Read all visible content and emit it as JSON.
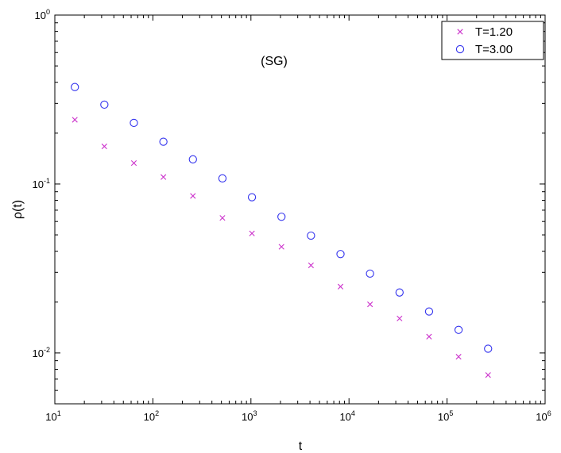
{
  "chart_data": {
    "type": "scatter",
    "xlabel": "t",
    "ylabel": "ρ(t)",
    "annotation": "(SG)",
    "xscale": "log",
    "yscale": "log",
    "xlim": [
      10,
      1000000
    ],
    "ylim": [
      0.005,
      1
    ],
    "xticks": [
      {
        "base": "10",
        "exp": "1",
        "value": 10
      },
      {
        "base": "10",
        "exp": "2",
        "value": 100
      },
      {
        "base": "10",
        "exp": "3",
        "value": 1000
      },
      {
        "base": "10",
        "exp": "4",
        "value": 10000
      },
      {
        "base": "10",
        "exp": "5",
        "value": 100000
      },
      {
        "base": "10",
        "exp": "6",
        "value": 1000000
      }
    ],
    "yticks": [
      {
        "base": "10",
        "exp": "-2",
        "value": 0.01
      },
      {
        "base": "10",
        "exp": "-1",
        "value": 0.1
      },
      {
        "base": "10",
        "exp": "0",
        "value": 1
      }
    ],
    "legend_position": "top-right",
    "series": [
      {
        "name": "T=1.20",
        "marker": "x",
        "color": "#cc33cc",
        "x": [
          16,
          32,
          64,
          128,
          256,
          512,
          1024,
          2048,
          4096,
          8192,
          16384,
          32768,
          65536,
          131072,
          262144
        ],
        "y": [
          0.24,
          0.167,
          0.133,
          0.11,
          0.085,
          0.063,
          0.051,
          0.0425,
          0.033,
          0.0247,
          0.0194,
          0.016,
          0.0125,
          0.0095,
          0.0074
        ]
      },
      {
        "name": "T=3.00",
        "marker": "o",
        "color": "#3333ee",
        "x": [
          16,
          32,
          64,
          128,
          256,
          512,
          1024,
          2048,
          4096,
          8192,
          16384,
          32768,
          65536,
          131072,
          262144
        ],
        "y": [
          0.375,
          0.295,
          0.23,
          0.178,
          0.14,
          0.108,
          0.0835,
          0.064,
          0.0495,
          0.0385,
          0.0295,
          0.0228,
          0.0176,
          0.0137,
          0.0106
        ]
      }
    ]
  }
}
